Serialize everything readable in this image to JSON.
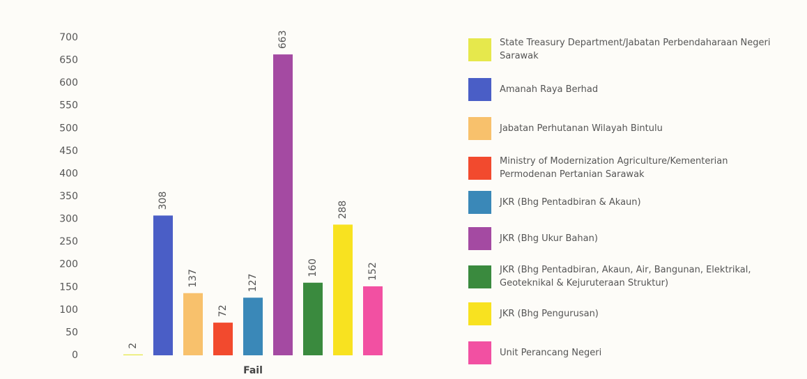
{
  "chart_data": {
    "type": "bar",
    "x_label": "Fail",
    "categories": [
      "Fail"
    ],
    "series": [
      {
        "name": "State Treasury Department/Jabatan Perbendaharaan Negeri Sarawak",
        "color": "#e6e84c",
        "values": [
          2
        ]
      },
      {
        "name": "Amanah Raya Berhad",
        "color": "#4a5ec6",
        "values": [
          308
        ]
      },
      {
        "name": "Jabatan Perhutanan Wilayah Bintulu",
        "color": "#f8c16c",
        "values": [
          137
        ]
      },
      {
        "name": "Ministry of Modernization Agriculture/Kementerian Permodenan Pertanian Sarawak",
        "color": "#f24a2e",
        "values": [
          72
        ]
      },
      {
        "name": "JKR (Bhg Pentadbiran & Akaun)",
        "color": "#3a88b8",
        "values": [
          127
        ]
      },
      {
        "name": "JKR (Bhg Ukur Bahan)",
        "color": "#a44aa2",
        "values": [
          663
        ]
      },
      {
        "name": "JKR (Bhg Pentadbiran, Akaun, Air, Bangunan, Elektrikal, Geoteknikal & Kejuruteraan Struktur)",
        "color": "#3a8a3e",
        "values": [
          160
        ]
      },
      {
        "name": "JKR (Bhg Pengurusan)",
        "color": "#f8e220",
        "values": [
          288
        ]
      },
      {
        "name": "Unit Perancang Negeri",
        "color": "#f250a2",
        "values": [
          152
        ]
      }
    ],
    "ylim": [
      0,
      700
    ],
    "yticks": [
      0,
      50,
      100,
      150,
      200,
      250,
      300,
      350,
      400,
      450,
      500,
      550,
      600,
      650,
      700
    ],
    "grid": false,
    "legend": "right"
  }
}
